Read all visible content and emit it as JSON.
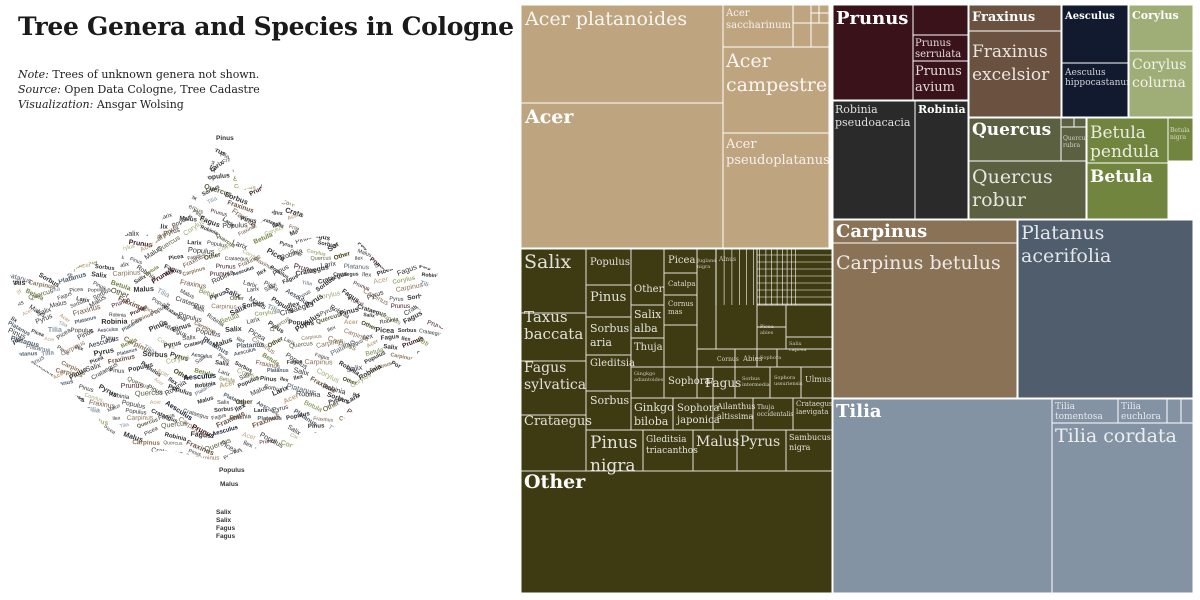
{
  "header": {
    "title": "Tree Genera and Species in Cologne",
    "note_label": "Note:",
    "note_text": "Trees of unknown genera not shown.",
    "source_label": "Source:",
    "source_text": "Open Data Cologne, Tree Cadastre",
    "viz_label": "Visualization:",
    "viz_text": "Ansgar Wolsing"
  },
  "colors": {
    "Acer": "#bfa57f",
    "Prunus": "#3a1219",
    "Fraxinus": "#6b5140",
    "Aesculus": "#121a2f",
    "Corylus": "#9fae76",
    "Robinia": "#2a2a2a",
    "Quercus": "#5a6040",
    "Betula": "#72853f",
    "Carpinus": "#8a7257",
    "Platanus": "#4f5d6d",
    "Tilia": "#8493a4",
    "Other": "#3e3b12"
  },
  "leaf": {
    "words": [
      "Pinus",
      "Crataegus",
      "Sorbus",
      "Salix",
      "Corylus",
      "Aesculus",
      "Fraxinus",
      "Quercus",
      "Betula",
      "Robinia",
      "Prunus",
      "Carpinus",
      "Platanus",
      "Tilia",
      "Acer",
      "Other",
      "Pyrus",
      "Larix",
      "Ilex",
      "Malus",
      "Populus",
      "Fagus",
      "Picea"
    ]
  },
  "chart_data": {
    "type": "treemap",
    "title": "Tree Genera and Species in Cologne",
    "genera": [
      {
        "name": "Acer",
        "species": [
          "Acer platanoides",
          "Acer saccharinum",
          "Acer campestre",
          "Acer pseudoplatanus"
        ]
      },
      {
        "name": "Prunus",
        "species": [
          "Prunus serrulata",
          "Prunus avium"
        ]
      },
      {
        "name": "Fraxinus",
        "species": [
          "Fraxinus excelsior"
        ]
      },
      {
        "name": "Aesculus",
        "species": [
          "Aesculus hippocastanum"
        ]
      },
      {
        "name": "Corylus",
        "species": [
          "Corylus colurna"
        ]
      },
      {
        "name": "Robinia",
        "species": [
          "Robinia pseudoacacia"
        ]
      },
      {
        "name": "Quercus",
        "species": [
          "Quercus robur",
          "Quercus rubra"
        ]
      },
      {
        "name": "Betula",
        "species": [
          "Betula pendula",
          "Betula nigra"
        ]
      },
      {
        "name": "Carpinus",
        "species": [
          "Carpinus betulus"
        ]
      },
      {
        "name": "Platanus",
        "species": [
          "Platanus acerifolia"
        ]
      },
      {
        "name": "Tilia",
        "species": [
          "Tilia tomentosa",
          "Tilia euchlora",
          "Tilia cordata"
        ]
      },
      {
        "name": "Other",
        "species": [
          "Salix",
          "Populus",
          "Picea",
          "Pinus",
          "Catalpa",
          "Other",
          "Taxus baccata",
          "Sorbus aria",
          "Cornus mas",
          "Salix alba",
          "Thuja",
          "Fagus sylvatica",
          "Gleditsia",
          "Abies",
          "Crataegus",
          "Ginkgo biloba",
          "Sophora",
          "Fagus",
          "Sorbus intermedia",
          "Sophora ussuriensis",
          "Ulmus",
          "Sorbus",
          "Ginkgo biloba",
          "Sophora japonica",
          "Ailanthus altissima",
          "Thuja occidentalis",
          "Crataegus laevigata",
          "Pinus nigra",
          "Gleditsia triacanthos",
          "Malus",
          "Pyrus",
          "Sambucus nigra",
          "Juglans nigra",
          "Alnus",
          "Picea abies",
          "Salix caprea",
          "Sophora",
          "Gingkgo adiantoides"
        ]
      }
    ]
  },
  "tm": {
    "acer_genus": "Acer",
    "acer_platanoides": "Acer platanoides",
    "acer_saccharinum": "Acer saccharinum",
    "acer_campestre": "Acer campestre",
    "acer_pseudoplatanus": "Acer pseudoplatanus",
    "prunus_genus": "Prunus",
    "prunus_serrulata": "Prunus serrulata",
    "prunus_avium": "Prunus avium",
    "fraxinus_genus": "Fraxinus",
    "fraxinus_excelsior": "Fraxinus excelsior",
    "aesculus_genus": "Aesculus",
    "aesculus_hippocastanum": "Aesculus hippocastanum",
    "corylus_genus": "Corylus",
    "corylus_colurna": "Corylus colurna",
    "robinia_genus": "Robinia",
    "robinia_pseudoacacia": "Robinia pseudoacacia",
    "quercus_genus": "Quercus",
    "quercus_robur": "Quercus robur",
    "quercus_rubra": "Quercus rubra",
    "betula_genus": "Betula",
    "betula_pendula": "Betula pendula",
    "betula_nigra": "Betula nigra",
    "carpinus_genus": "Carpinus",
    "carpinus_betulus": "Carpinus betulus",
    "platanus_acerifolia": "Platanus acerifolia",
    "tilia_genus": "Tilia",
    "tilia_tomentosa": "Tilia tomentosa",
    "tilia_euchlora": "Tilia euchlora",
    "tilia_cordata": "Tilia cordata",
    "other_genus": "Other",
    "salix": "Salix",
    "populus": "Populus",
    "picea": "Picea",
    "juglans_nigra": "Juglans nigra",
    "alnus": "Alnus",
    "pinus": "Pinus",
    "catalpa": "Catalpa",
    "other": "Other",
    "taxus_baccata": "Taxus baccata",
    "sorbus_aria": "Sorbus aria",
    "cornus_mas": "Cornus mas",
    "salix_alba": "Salix alba",
    "thuja": "Thuja",
    "fagus_sylvatica": "Fagus sylvatica",
    "gleditsia": "Gleditsia",
    "picea_abies": "Picea abies",
    "salix_caprea": "Salix caprea",
    "sophora_small": "Sophora",
    "cornus": "Cornus",
    "abies": "Abies",
    "gingkgo_adiantoides": "Gingkgo adiantoides",
    "sophora": "Sophora",
    "fagus": "Fagus",
    "sorbus_intermedia": "Sorbus intermedia",
    "sophora_ussuriensis": "Sophora ussuriensis",
    "ulmus": "Ulmus",
    "crataegus": "Crataegus",
    "sorbus": "Sorbus",
    "ginkgo_biloba": "Ginkgo biloba",
    "sophora_japonica": "Sophora japonica",
    "ailanthus_altissima": "Ailanthus altissima",
    "thuja_occidentalis": "Thuja occidentalis",
    "crataegus_laevigata": "Crataegus laevigata",
    "pinus_nigra": "Pinus nigra",
    "gleditsia_triacanthos": "Gleditsia triacanthos",
    "malus": "Malus",
    "pyrus": "Pyrus",
    "sambucus_nigra": "Sambucus nigra"
  }
}
